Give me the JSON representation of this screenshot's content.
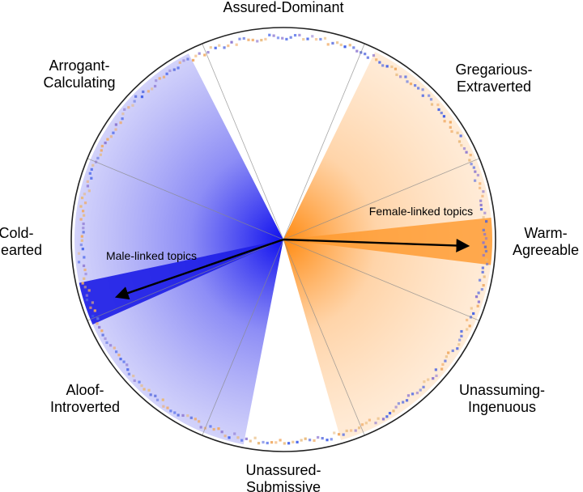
{
  "chart_data": {
    "type": "circumplex",
    "title": "",
    "octants": [
      {
        "id": "assured-dominant",
        "lines": [
          "Assured-Dominant"
        ],
        "angle_deg": 90
      },
      {
        "id": "gregarious-extraverted",
        "lines": [
          "Gregarious-",
          "Extraverted"
        ],
        "angle_deg": 45
      },
      {
        "id": "warm-agreeable",
        "lines": [
          "Warm-",
          "Agreeable"
        ],
        "angle_deg": 0
      },
      {
        "id": "unassuming-ingenuous",
        "lines": [
          "Unassuming-",
          "Ingenuous"
        ],
        "angle_deg": -45
      },
      {
        "id": "unassured-submissive",
        "lines": [
          "Unassured-",
          "Submissive"
        ],
        "angle_deg": -90
      },
      {
        "id": "aloof-introverted",
        "lines": [
          "Aloof-",
          "Introverted"
        ],
        "angle_deg": -135
      },
      {
        "id": "cold-hearted",
        "lines": [
          "Cold-",
          "Hearted"
        ],
        "angle_deg": 180
      },
      {
        "id": "arrogant-calculating",
        "lines": [
          "Arrogant-",
          "Calculating"
        ],
        "angle_deg": 135
      }
    ],
    "groups": [
      {
        "id": "male",
        "label": "Male-linked topics",
        "color": "#1f1fe6",
        "mean_angle_deg": 199,
        "mean_length": 0.84,
        "sector_from_deg": 117,
        "sector_to_deg": 259,
        "peak_from_deg": 192,
        "peak_to_deg": 204
      },
      {
        "id": "female",
        "label": "Female-linked topics",
        "color": "#ff9a2e",
        "mean_angle_deg": -2,
        "mean_length": 0.88,
        "sector_from_deg": 64,
        "sector_to_deg": -74,
        "peak_from_deg": 6,
        "peak_to_deg": -7
      }
    ],
    "ring_colors": [
      "#3a5ae8",
      "#f0a860",
      "#8a74d0",
      "#e8b878",
      "#5a6ee0"
    ]
  }
}
